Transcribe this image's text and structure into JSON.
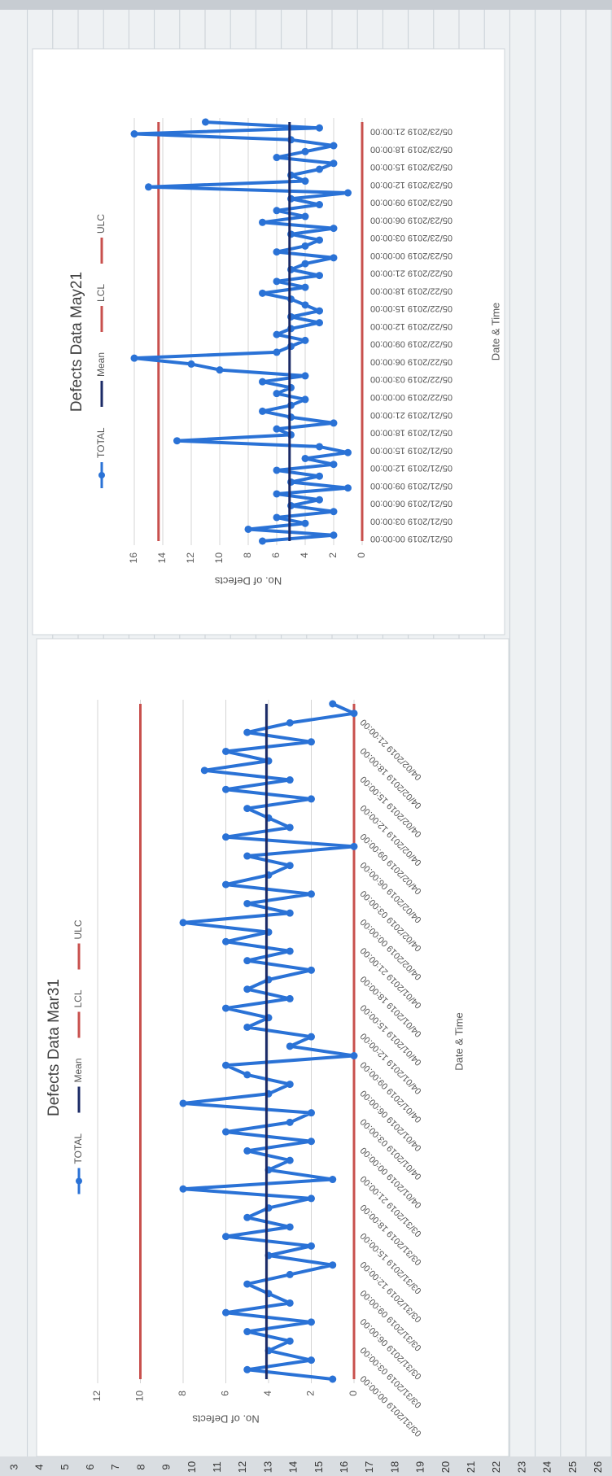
{
  "chart_data": [
    {
      "type": "line",
      "title": "Defects Data Mar31",
      "xlabel": "Date & Time",
      "ylabel": "No. of Defects",
      "legend": "top",
      "grid": true,
      "categories": [
        "03/31/2019 00:00:00",
        null,
        null,
        "03/31/2019 03:00:00",
        null,
        null,
        "03/31/2019 06:00:00",
        null,
        null,
        "03/31/2019 09:00:00",
        null,
        null,
        "03/31/2019 12:00:00",
        null,
        null,
        "03/31/2019 15:00:00",
        null,
        null,
        "03/31/2019 18:00:00",
        null,
        null,
        "03/31/2019 21:00:00",
        null,
        null,
        "04/01/2019 00:00:00",
        null,
        null,
        "04/01/2019 03:00:00",
        null,
        null,
        "04/01/2019 06:00:00",
        null,
        null,
        "04/01/2019 09:00:00",
        null,
        null,
        "04/01/2019 12:00:00",
        null,
        null,
        "04/01/2019 15:00:00",
        null,
        null,
        "04/01/2019 18:00:00",
        null,
        null,
        "04/01/2019 21:00:00",
        null,
        null,
        "04/02/2019 00:00:00",
        null,
        null,
        "04/02/2019 03:00:00",
        null,
        null,
        "04/02/2019 06:00:00",
        null,
        null,
        "04/02/2019 09:00:00",
        null,
        null,
        "04/02/2019 12:00:00",
        null,
        null,
        "04/02/2019 15:00:00",
        null,
        null,
        "04/02/2019 18:00:00",
        null,
        null,
        "04/02/2019 21:00:00",
        null,
        null
      ],
      "ylim": [
        0,
        12
      ],
      "yticks": [
        0,
        2,
        4,
        6,
        8,
        10,
        12
      ],
      "series": [
        {
          "name": "TOTAL",
          "color": "#2a72d6",
          "marker": true,
          "values": [
            1,
            5,
            2,
            4,
            3,
            5,
            2,
            6,
            3,
            4,
            5,
            3,
            1,
            4,
            2,
            6,
            3,
            5,
            4,
            2,
            8,
            1,
            4,
            3,
            5,
            2,
            6,
            3,
            2,
            8,
            4,
            3,
            5,
            6,
            0,
            3,
            2,
            5,
            4,
            6,
            3,
            5,
            4,
            2,
            5,
            3,
            6,
            4,
            8,
            3,
            5,
            2,
            6,
            4,
            3,
            5,
            0,
            6,
            3,
            4,
            5,
            2,
            6,
            3,
            7,
            4,
            6,
            2,
            5,
            3,
            0,
            1
          ]
        },
        {
          "name": "Mean",
          "color": "#1b2a66",
          "values": [
            4.1,
            4.1,
            4.1,
            4.1,
            4.1,
            4.1,
            4.1,
            4.1,
            4.1,
            4.1,
            4.1,
            4.1,
            4.1,
            4.1,
            4.1,
            4.1,
            4.1,
            4.1,
            4.1,
            4.1,
            4.1,
            4.1,
            4.1,
            4.1,
            4.1,
            4.1,
            4.1,
            4.1,
            4.1,
            4.1,
            4.1,
            4.1,
            4.1,
            4.1,
            4.1,
            4.1,
            4.1,
            4.1,
            4.1,
            4.1,
            4.1,
            4.1,
            4.1,
            4.1,
            4.1,
            4.1,
            4.1,
            4.1,
            4.1,
            4.1,
            4.1,
            4.1,
            4.1,
            4.1,
            4.1,
            4.1,
            4.1,
            4.1,
            4.1,
            4.1,
            4.1,
            4.1,
            4.1,
            4.1,
            4.1,
            4.1,
            4.1,
            4.1,
            4.1,
            4.1,
            4.1,
            4.1
          ]
        },
        {
          "name": "LCL",
          "color": "#c8504d",
          "values": [
            0,
            0,
            0,
            0,
            0,
            0,
            0,
            0,
            0,
            0,
            0,
            0,
            0,
            0,
            0,
            0,
            0,
            0,
            0,
            0,
            0,
            0,
            0,
            0,
            0,
            0,
            0,
            0,
            0,
            0,
            0,
            0,
            0,
            0,
            0,
            0,
            0,
            0,
            0,
            0,
            0,
            0,
            0,
            0,
            0,
            0,
            0,
            0,
            0,
            0,
            0,
            0,
            0,
            0,
            0,
            0,
            0,
            0,
            0,
            0,
            0,
            0,
            0,
            0,
            0,
            0,
            0,
            0,
            0,
            0,
            0,
            0
          ]
        },
        {
          "name": "ULC",
          "color": "#c8504d",
          "values": [
            10,
            10,
            10,
            10,
            10,
            10,
            10,
            10,
            10,
            10,
            10,
            10,
            10,
            10,
            10,
            10,
            10,
            10,
            10,
            10,
            10,
            10,
            10,
            10,
            10,
            10,
            10,
            10,
            10,
            10,
            10,
            10,
            10,
            10,
            10,
            10,
            10,
            10,
            10,
            10,
            10,
            10,
            10,
            10,
            10,
            10,
            10,
            10,
            10,
            10,
            10,
            10,
            10,
            10,
            10,
            10,
            10,
            10,
            10,
            10,
            10,
            10,
            10,
            10,
            10,
            10,
            10,
            10,
            10,
            10,
            10,
            10
          ]
        }
      ]
    },
    {
      "type": "line",
      "title": "Defects Data May21",
      "xlabel": "Date & Time",
      "ylabel": "No. of Defects",
      "legend": "top",
      "grid": true,
      "categories": [
        "05/21/2019 00:00:00",
        null,
        null,
        "05/21/2019 03:00:00",
        null,
        null,
        "05/21/2019 06:00:00",
        null,
        null,
        "05/21/2019 09:00:00",
        null,
        null,
        "05/21/2019 12:00:00",
        null,
        null,
        "05/21/2019 15:00:00",
        null,
        null,
        "05/21/2019 18:00:00",
        null,
        null,
        "05/21/2019 21:00:00",
        null,
        null,
        "05/22/2019 00:00:00",
        null,
        null,
        "05/22/2019 03:00:00",
        null,
        null,
        "05/22/2019 06:00:00",
        null,
        null,
        "05/22/2019 09:00:00",
        null,
        null,
        "05/22/2019 12:00:00",
        null,
        null,
        "05/22/2019 15:00:00",
        null,
        null,
        "05/22/2019 18:00:00",
        null,
        null,
        "05/22/2019 21:00:00",
        null,
        null,
        "05/23/2019 00:00:00",
        null,
        null,
        "05/23/2019 03:00:00",
        null,
        null,
        "05/23/2019 06:00:00",
        null,
        null,
        "05/23/2019 09:00:00",
        null,
        null,
        "05/23/2019 12:00:00",
        null,
        null,
        "05/23/2019 15:00:00",
        null,
        null,
        "05/23/2019 18:00:00",
        null,
        null,
        "05/23/2019 21:00:00",
        null,
        null
      ],
      "ylim": [
        0,
        16
      ],
      "yticks": [
        0,
        2,
        4,
        6,
        8,
        10,
        12,
        14,
        16
      ],
      "series": [
        {
          "name": "TOTAL",
          "color": "#2a72d6",
          "marker": true,
          "values": [
            7,
            2,
            8,
            4,
            6,
            2,
            5,
            3,
            6,
            1,
            5,
            3,
            6,
            2,
            4,
            1,
            3,
            13,
            5,
            6,
            2,
            5,
            7,
            5,
            4,
            6,
            5,
            7,
            4,
            10,
            12,
            16,
            6,
            5,
            4,
            6,
            5,
            3,
            5,
            3,
            4,
            5,
            7,
            4,
            6,
            3,
            5,
            4,
            2,
            6,
            4,
            3,
            5,
            2,
            7,
            4,
            6,
            3,
            5,
            1,
            15,
            4,
            5,
            3,
            2,
            6,
            4,
            2,
            5,
            16,
            3,
            11
          ]
        },
        {
          "name": "Mean",
          "color": "#1b2a66",
          "values": [
            5.1,
            5.1,
            5.1,
            5.1,
            5.1,
            5.1,
            5.1,
            5.1,
            5.1,
            5.1,
            5.1,
            5.1,
            5.1,
            5.1,
            5.1,
            5.1,
            5.1,
            5.1,
            5.1,
            5.1,
            5.1,
            5.1,
            5.1,
            5.1,
            5.1,
            5.1,
            5.1,
            5.1,
            5.1,
            5.1,
            5.1,
            5.1,
            5.1,
            5.1,
            5.1,
            5.1,
            5.1,
            5.1,
            5.1,
            5.1,
            5.1,
            5.1,
            5.1,
            5.1,
            5.1,
            5.1,
            5.1,
            5.1,
            5.1,
            5.1,
            5.1,
            5.1,
            5.1,
            5.1,
            5.1,
            5.1,
            5.1,
            5.1,
            5.1,
            5.1,
            5.1,
            5.1,
            5.1,
            5.1,
            5.1,
            5.1,
            5.1,
            5.1,
            5.1,
            5.1,
            5.1,
            5.1
          ]
        },
        {
          "name": "LCL",
          "color": "#c8504d",
          "values": [
            0,
            0,
            0,
            0,
            0,
            0,
            0,
            0,
            0,
            0,
            0,
            0,
            0,
            0,
            0,
            0,
            0,
            0,
            0,
            0,
            0,
            0,
            0,
            0,
            0,
            0,
            0,
            0,
            0,
            0,
            0,
            0,
            0,
            0,
            0,
            0,
            0,
            0,
            0,
            0,
            0,
            0,
            0,
            0,
            0,
            0,
            0,
            0,
            0,
            0,
            0,
            0,
            0,
            0,
            0,
            0,
            0,
            0,
            0,
            0,
            0,
            0,
            0,
            0,
            0,
            0,
            0,
            0,
            0,
            0,
            0,
            0
          ]
        },
        {
          "name": "ULC",
          "color": "#c8504d",
          "values": [
            14.3,
            14.3,
            14.3,
            14.3,
            14.3,
            14.3,
            14.3,
            14.3,
            14.3,
            14.3,
            14.3,
            14.3,
            14.3,
            14.3,
            14.3,
            14.3,
            14.3,
            14.3,
            14.3,
            14.3,
            14.3,
            14.3,
            14.3,
            14.3,
            14.3,
            14.3,
            14.3,
            14.3,
            14.3,
            14.3,
            14.3,
            14.3,
            14.3,
            14.3,
            14.3,
            14.3,
            14.3,
            14.3,
            14.3,
            14.3,
            14.3,
            14.3,
            14.3,
            14.3,
            14.3,
            14.3,
            14.3,
            14.3,
            14.3,
            14.3,
            14.3,
            14.3,
            14.3,
            14.3,
            14.3,
            14.3,
            14.3,
            14.3,
            14.3,
            14.3,
            14.3,
            14.3,
            14.3,
            14.3,
            14.3,
            14.3,
            14.3,
            14.3,
            14.3,
            14.3,
            14.3,
            14.3
          ]
        }
      ]
    }
  ],
  "sheet": {
    "row_headers": [
      "3",
      "4",
      "5",
      "6",
      "7",
      "8",
      "9",
      "10",
      "11",
      "12",
      "13",
      "14",
      "15",
      "16",
      "17",
      "18",
      "19",
      "20",
      "21",
      "22",
      "23",
      "24",
      "25",
      "26"
    ]
  }
}
